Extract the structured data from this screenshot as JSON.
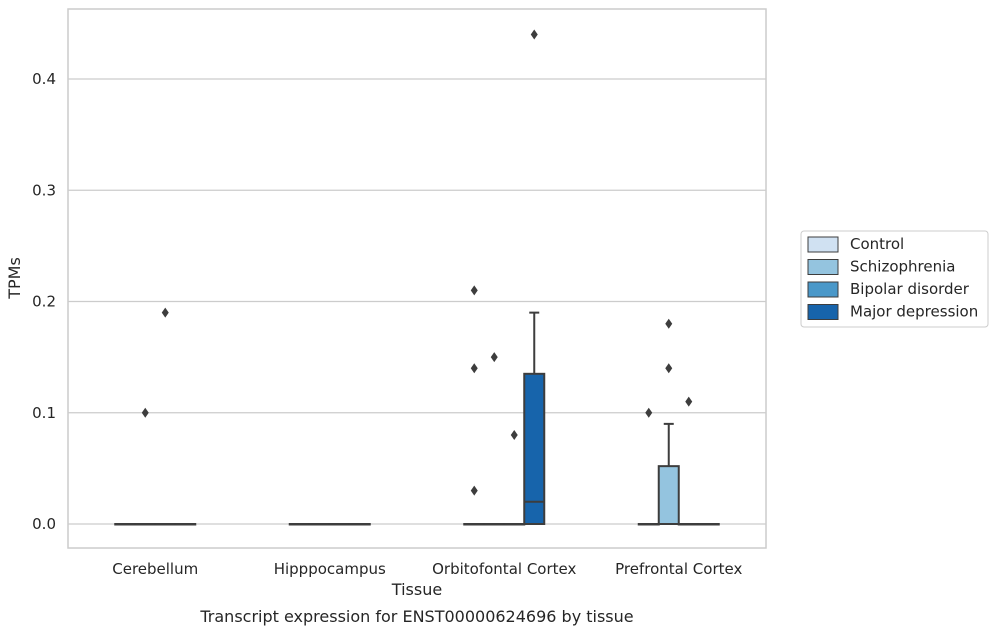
{
  "chart_data": {
    "type": "boxplot",
    "title": "",
    "caption": "Transcript expression for ENST00000624696 by tissue",
    "xlabel": "Tissue",
    "ylabel": "TPMs",
    "categories": [
      "Cerebellum",
      "Hipppocampus",
      "Orbitofontal Cortex",
      "Prefrontal Cortex"
    ],
    "ylim": [
      -0.022,
      0.465
    ],
    "yticks": [
      0.0,
      0.1,
      0.2,
      0.3,
      0.4
    ],
    "ytick_labels": [
      "0.0",
      "0.1",
      "0.2",
      "0.3",
      "0.4"
    ],
    "grid": true,
    "legend_position": "right",
    "series": [
      {
        "name": "Control",
        "color": "#d0e1f2",
        "boxes": [
          {
            "category": "Cerebellum",
            "q1": 0,
            "median": 0,
            "q3": 0,
            "whisker_low": 0,
            "whisker_high": 0,
            "outliers": []
          },
          {
            "category": "Hipppocampus",
            "q1": 0,
            "median": 0,
            "q3": 0,
            "whisker_low": 0,
            "whisker_high": 0,
            "outliers": []
          },
          {
            "category": "Orbitofontal Cortex",
            "q1": 0,
            "median": 0,
            "q3": 0,
            "whisker_low": 0,
            "whisker_high": 0,
            "outliers": [
              0.14,
              0.21,
              0.03
            ]
          },
          {
            "category": "Prefrontal Cortex",
            "q1": 0,
            "median": 0,
            "q3": 0,
            "whisker_low": 0,
            "whisker_high": 0,
            "outliers": [
              0.1
            ]
          }
        ]
      },
      {
        "name": "Schizophrenia",
        "color": "#94c4df",
        "boxes": [
          {
            "category": "Cerebellum",
            "q1": 0,
            "median": 0,
            "q3": 0,
            "whisker_low": 0,
            "whisker_high": 0,
            "outliers": [
              0.1
            ]
          },
          {
            "category": "Hipppocampus",
            "q1": 0,
            "median": 0,
            "q3": 0,
            "whisker_low": 0,
            "whisker_high": 0,
            "outliers": []
          },
          {
            "category": "Orbitofontal Cortex",
            "q1": 0,
            "median": 0,
            "q3": 0,
            "whisker_low": 0,
            "whisker_high": 0,
            "outliers": [
              0.15
            ]
          },
          {
            "category": "Prefrontal Cortex",
            "q1": 0,
            "median": 0,
            "q3": 0.052,
            "whisker_low": 0,
            "whisker_high": 0.09,
            "outliers": [
              0.18,
              0.14
            ]
          }
        ]
      },
      {
        "name": "Bipolar disorder",
        "color": "#4a98c9",
        "boxes": [
          {
            "category": "Cerebellum",
            "q1": 0,
            "median": 0,
            "q3": 0,
            "whisker_low": 0,
            "whisker_high": 0,
            "outliers": [
              0.19
            ]
          },
          {
            "category": "Hipppocampus",
            "q1": 0,
            "median": 0,
            "q3": 0,
            "whisker_low": 0,
            "whisker_high": 0,
            "outliers": []
          },
          {
            "category": "Orbitofontal Cortex",
            "q1": 0,
            "median": 0,
            "q3": 0,
            "whisker_low": 0,
            "whisker_high": 0,
            "outliers": [
              0.08
            ]
          },
          {
            "category": "Prefrontal Cortex",
            "q1": 0,
            "median": 0,
            "q3": 0,
            "whisker_low": 0,
            "whisker_high": 0,
            "outliers": [
              0.11
            ]
          }
        ]
      },
      {
        "name": "Major depression",
        "color": "#1764ab",
        "boxes": [
          {
            "category": "Cerebellum",
            "q1": 0,
            "median": 0,
            "q3": 0,
            "whisker_low": 0,
            "whisker_high": 0,
            "outliers": []
          },
          {
            "category": "Hipppocampus",
            "q1": 0,
            "median": 0,
            "q3": 0,
            "whisker_low": 0,
            "whisker_high": 0,
            "outliers": []
          },
          {
            "category": "Orbitofontal Cortex",
            "q1": 0,
            "median": 0.02,
            "q3": 0.135,
            "whisker_low": 0,
            "whisker_high": 0.19,
            "outliers": [
              0.44
            ]
          },
          {
            "category": "Prefrontal Cortex",
            "q1": 0,
            "median": 0,
            "q3": 0,
            "whisker_low": 0,
            "whisker_high": 0,
            "outliers": []
          }
        ]
      }
    ]
  }
}
